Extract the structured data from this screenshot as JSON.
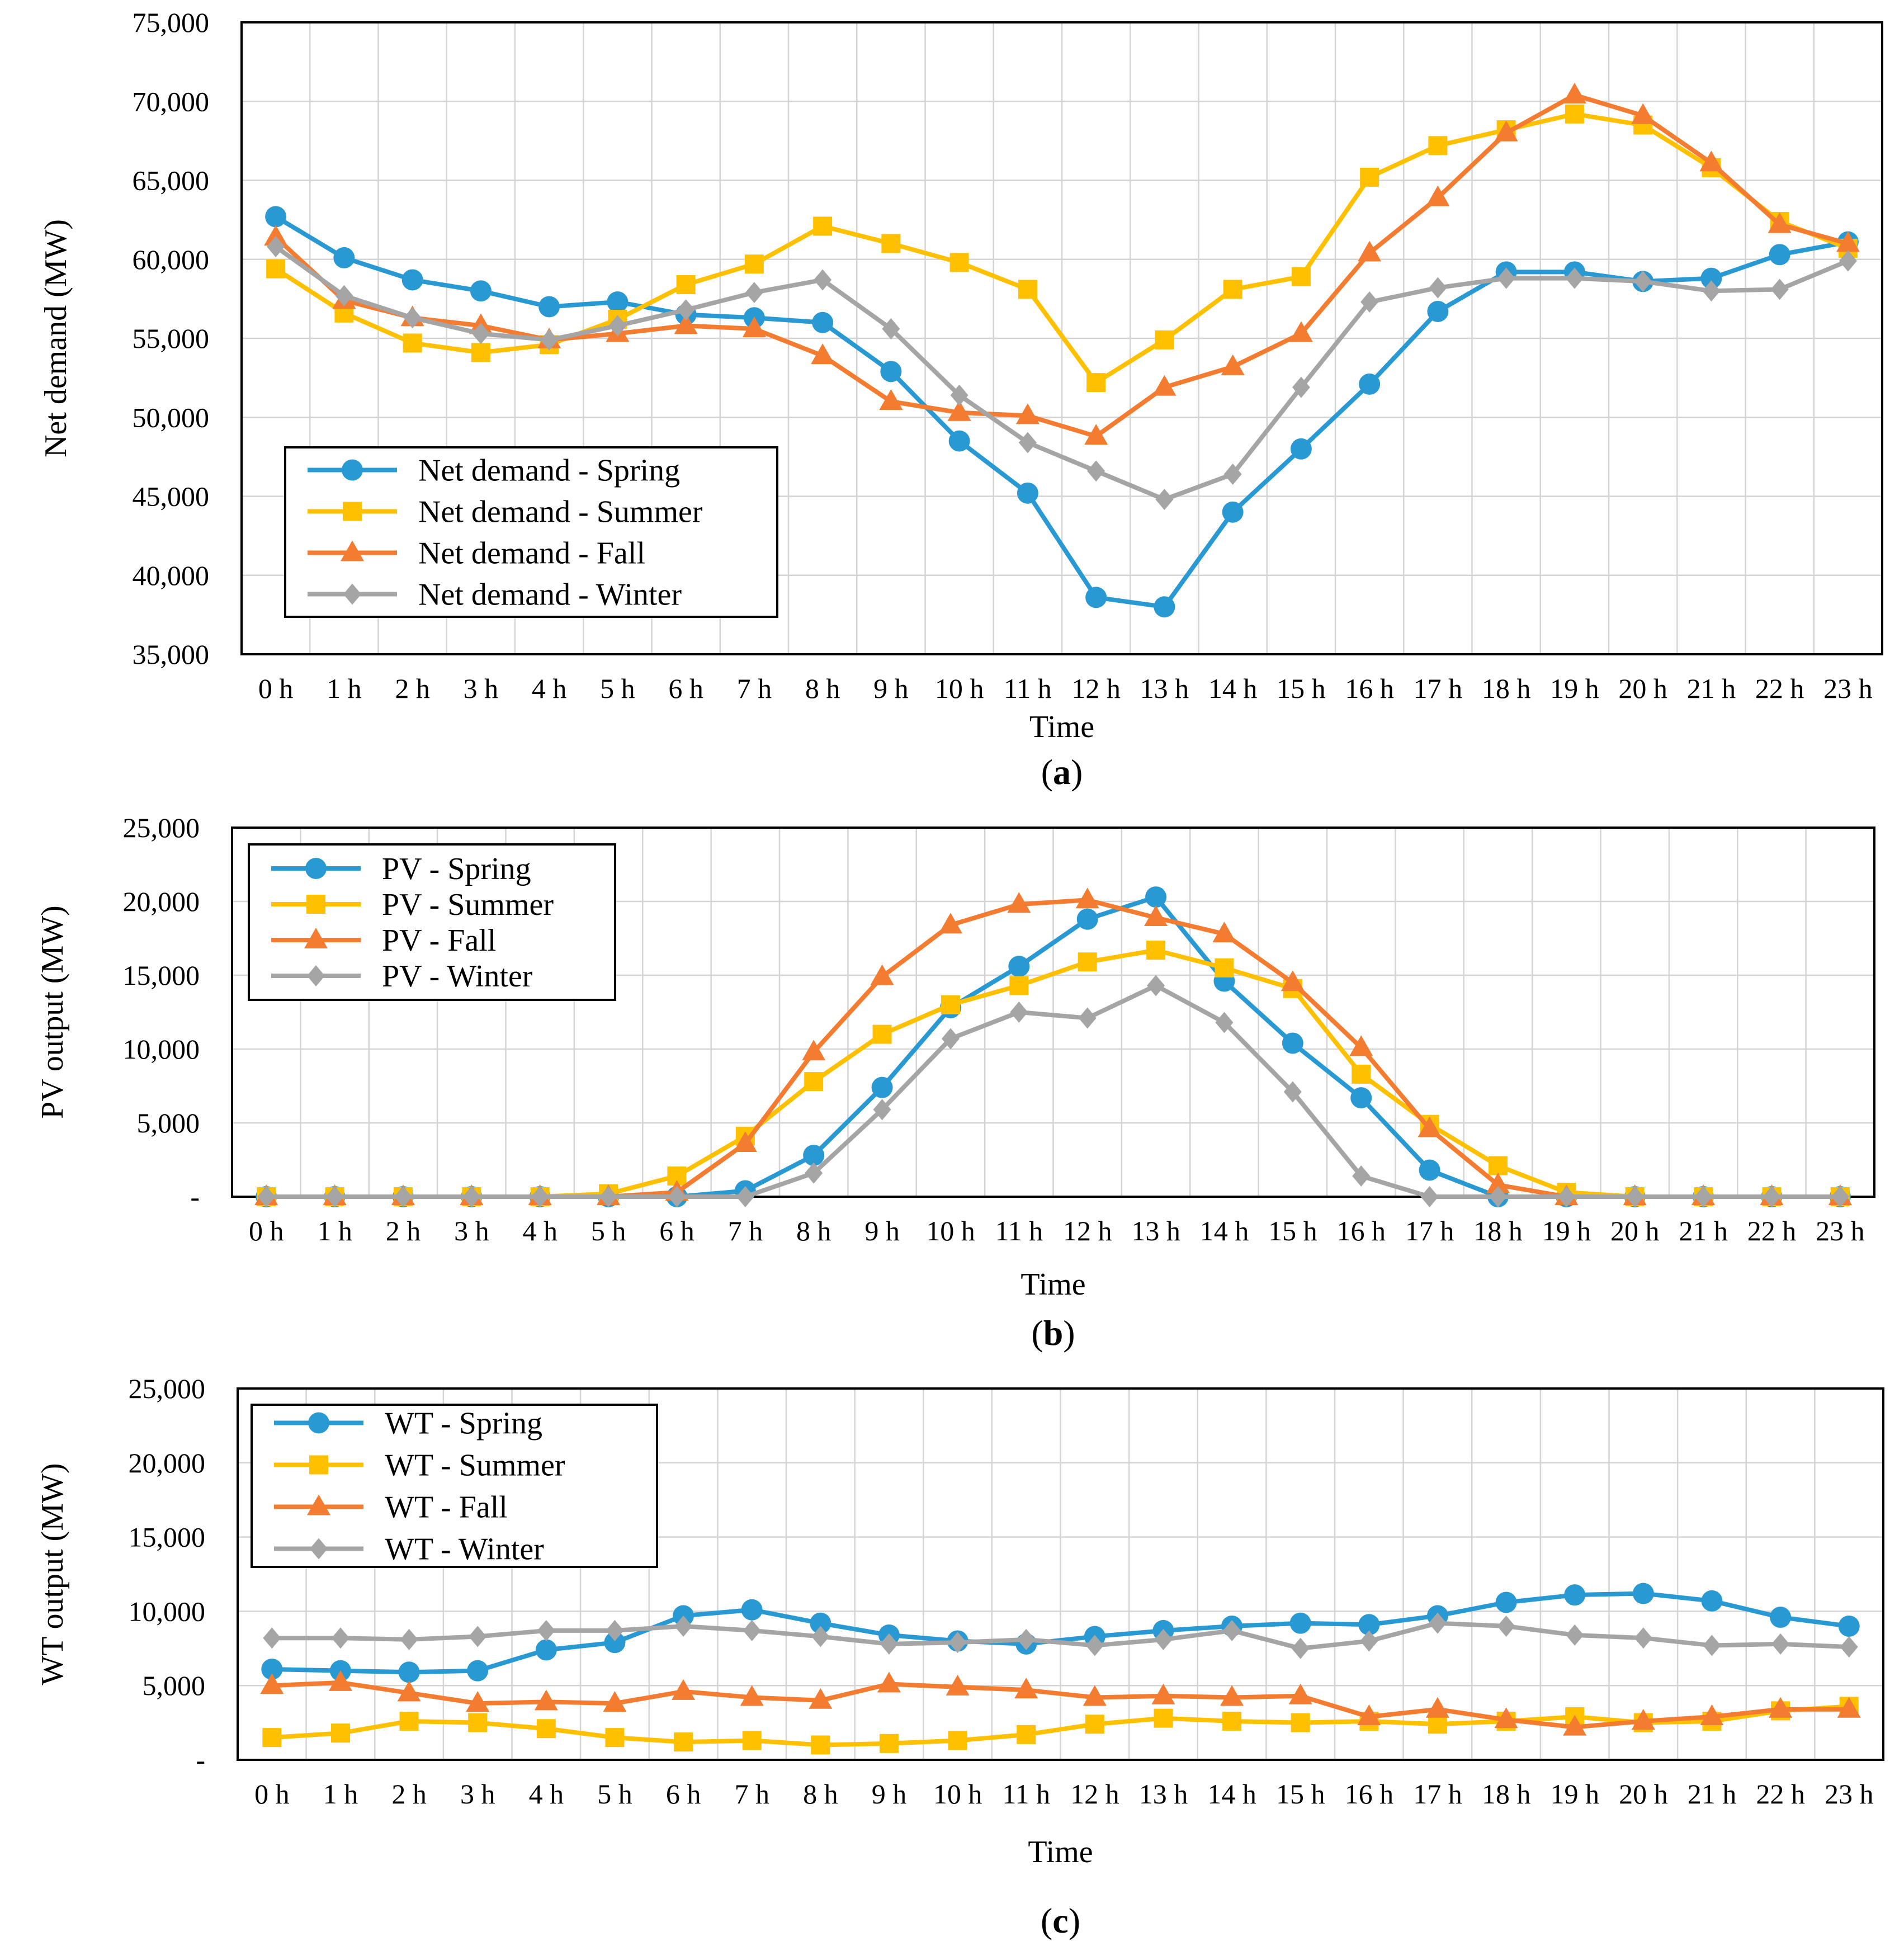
{
  "series_styles": [
    {
      "key": "spring",
      "color": "#2999D3",
      "marker": "circle"
    },
    {
      "key": "summer",
      "color": "#FFC000",
      "marker": "square"
    },
    {
      "key": "fall",
      "color": "#F47C30",
      "marker": "triangle"
    },
    {
      "key": "winter",
      "color": "#A5A5A5",
      "marker": "diamond"
    }
  ],
  "chart_data": [
    {
      "id": "a",
      "caption_letter": "a",
      "type": "line",
      "xlabel": "Time",
      "ylabel": "Net demand (MW)",
      "ylim": [
        35000,
        75000
      ],
      "ytick_labels": [
        "35,000",
        "40,000",
        "45,000",
        "50,000",
        "55,000",
        "60,000",
        "65,000",
        "70,000",
        "75,000"
      ],
      "categories": [
        "0 h",
        "1 h",
        "2 h",
        "3 h",
        "4 h",
        "5 h",
        "6 h",
        "7 h",
        "8 h",
        "9 h",
        "10 h",
        "11 h",
        "12 h",
        "13 h",
        "14 h",
        "15 h",
        "16 h",
        "17 h",
        "18 h",
        "19 h",
        "20 h",
        "21 h",
        "22 h",
        "23 h"
      ],
      "legend_position": "bottom-left",
      "series": [
        {
          "name": "Net demand - Spring",
          "values": [
            62700,
            60100,
            58700,
            58000,
            57000,
            57300,
            56500,
            56300,
            56000,
            52900,
            48500,
            45200,
            38600,
            38000,
            44000,
            48000,
            52100,
            56700,
            59200,
            59200,
            58600,
            58800,
            60300,
            61100
          ]
        },
        {
          "name": "Net demand - Summer",
          "values": [
            59400,
            56600,
            54700,
            54100,
            54600,
            56200,
            58400,
            59700,
            62100,
            61000,
            59800,
            58100,
            52200,
            54900,
            58100,
            58900,
            65200,
            67200,
            68200,
            69200,
            68500,
            65800,
            62400,
            60700
          ]
        },
        {
          "name": "Net demand - Fall",
          "values": [
            61400,
            57400,
            56300,
            55800,
            54900,
            55300,
            55800,
            55600,
            53900,
            51000,
            50300,
            50100,
            48800,
            51900,
            53200,
            55300,
            60400,
            63900,
            68000,
            70400,
            69100,
            66100,
            62200,
            61000
          ]
        },
        {
          "name": "Net demand - Winter",
          "values": [
            60800,
            57700,
            56300,
            55300,
            54900,
            55800,
            56800,
            57900,
            58700,
            55600,
            51400,
            48400,
            46600,
            44800,
            46400,
            51900,
            57300,
            58200,
            58800,
            58800,
            58600,
            58000,
            58100,
            59900
          ]
        }
      ]
    },
    {
      "id": "b",
      "caption_letter": "b",
      "type": "line",
      "xlabel": "Time",
      "ylabel": "PV output (MW)",
      "ylim": [
        0,
        25000
      ],
      "ytick_labels": [
        "-",
        "5,000",
        "10,000",
        "15,000",
        "20,000",
        "25,000"
      ],
      "categories": [
        "0 h",
        "1 h",
        "2 h",
        "3 h",
        "4 h",
        "5 h",
        "6 h",
        "7 h",
        "8 h",
        "9 h",
        "10 h",
        "11 h",
        "12 h",
        "13 h",
        "14 h",
        "15 h",
        "16 h",
        "17 h",
        "18 h",
        "19 h",
        "20 h",
        "21 h",
        "22 h",
        "23 h"
      ],
      "legend_position": "top-left",
      "series": [
        {
          "name": "PV - Spring",
          "values": [
            0,
            0,
            0,
            0,
            0,
            0,
            0,
            400,
            2800,
            7400,
            12800,
            15600,
            18800,
            20300,
            14600,
            10400,
            6700,
            1800,
            0,
            0,
            0,
            0,
            0,
            0
          ]
        },
        {
          "name": "PV - Summer",
          "values": [
            0,
            0,
            0,
            0,
            0,
            200,
            1400,
            4100,
            7800,
            11000,
            13000,
            14300,
            15900,
            16700,
            15500,
            14100,
            8300,
            4900,
            2100,
            300,
            0,
            0,
            0,
            0
          ]
        },
        {
          "name": "PV - Fall",
          "values": [
            0,
            0,
            0,
            0,
            0,
            0,
            300,
            3600,
            9800,
            14900,
            18400,
            19800,
            20100,
            18900,
            17800,
            14500,
            10100,
            4600,
            800,
            0,
            0,
            0,
            0,
            0
          ]
        },
        {
          "name": "PV - Winter",
          "values": [
            0,
            0,
            0,
            0,
            0,
            0,
            0,
            0,
            1600,
            5900,
            10700,
            12500,
            12100,
            14300,
            11800,
            7100,
            1400,
            0,
            0,
            0,
            0,
            0,
            0,
            0
          ]
        }
      ]
    },
    {
      "id": "c",
      "caption_letter": "c",
      "type": "line",
      "xlabel": "Time",
      "ylabel": "WT output (MW)",
      "ylim": [
        0,
        25000
      ],
      "ytick_labels": [
        "-",
        "5,000",
        "10,000",
        "15,000",
        "20,000",
        "25,000"
      ],
      "categories": [
        "0 h",
        "1 h",
        "2 h",
        "3 h",
        "4 h",
        "5 h",
        "6 h",
        "7 h",
        "8 h",
        "9 h",
        "10 h",
        "11 h",
        "12 h",
        "13 h",
        "14 h",
        "15 h",
        "16 h",
        "17 h",
        "18 h",
        "19 h",
        "20 h",
        "21 h",
        "22 h",
        "23 h"
      ],
      "legend_position": "top-left",
      "series": [
        {
          "name": "WT - Spring",
          "values": [
            6100,
            6000,
            5900,
            6000,
            7400,
            7900,
            9700,
            10100,
            9200,
            8400,
            8000,
            7800,
            8300,
            8700,
            9000,
            9200,
            9100,
            9700,
            10600,
            11100,
            11200,
            10700,
            9600,
            9000
          ]
        },
        {
          "name": "WT - Summer",
          "values": [
            1500,
            1800,
            2600,
            2500,
            2100,
            1500,
            1200,
            1300,
            1000,
            1100,
            1300,
            1700,
            2400,
            2800,
            2600,
            2500,
            2600,
            2400,
            2600,
            2900,
            2500,
            2600,
            3300,
            3600
          ]
        },
        {
          "name": "WT - Fall",
          "values": [
            5000,
            5200,
            4500,
            3800,
            3900,
            3800,
            4600,
            4200,
            4000,
            5100,
            4900,
            4700,
            4200,
            4300,
            4200,
            4300,
            2900,
            3400,
            2700,
            2200,
            2600,
            2900,
            3400,
            3400
          ]
        },
        {
          "name": "WT - Winter",
          "values": [
            8200,
            8200,
            8100,
            8300,
            8700,
            8700,
            9000,
            8700,
            8300,
            7800,
            7900,
            8100,
            7700,
            8100,
            8700,
            7500,
            8000,
            9200,
            9000,
            8400,
            8200,
            7700,
            7800,
            7600
          ]
        }
      ]
    }
  ]
}
